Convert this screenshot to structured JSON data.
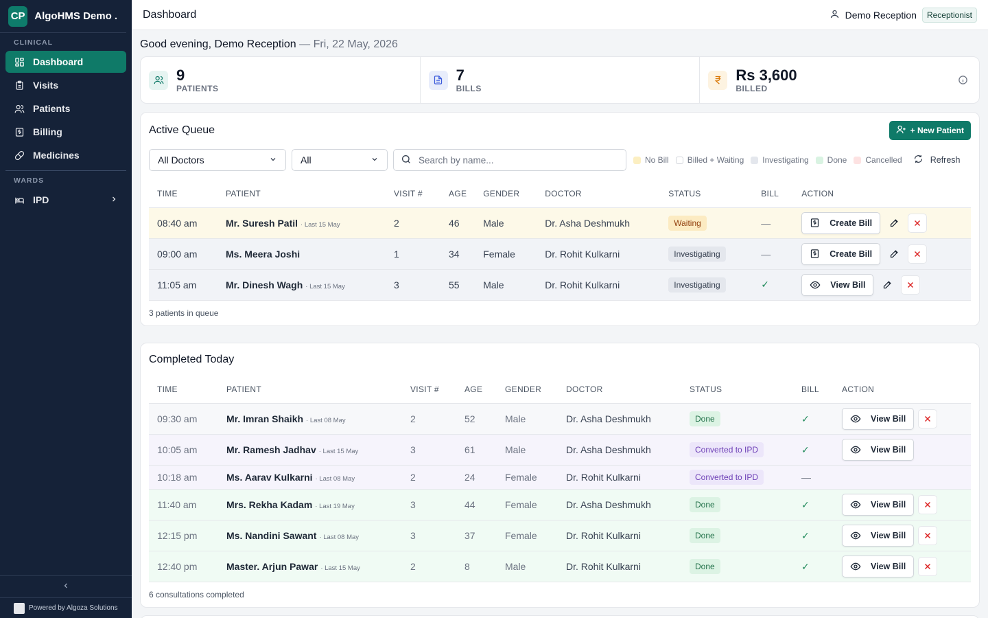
{
  "brand": {
    "logo": "CP",
    "name": "AlgoHMS Demo ..."
  },
  "sidebar": {
    "clinical_label": "CLINICAL",
    "wards_label": "WARDS",
    "items": [
      {
        "label": "Dashboard",
        "icon": "dashboard-icon"
      },
      {
        "label": "Visits",
        "icon": "clipboard-icon"
      },
      {
        "label": "Patients",
        "icon": "users-icon"
      },
      {
        "label": "Billing",
        "icon": "billing-icon"
      },
      {
        "label": "Medicines",
        "icon": "pill-icon"
      }
    ],
    "ipd": {
      "label": "IPD",
      "icon": "bed-icon"
    },
    "powered_by": "Powered by Algoza Solutions"
  },
  "topbar": {
    "title": "Dashboard",
    "user": "Demo Reception",
    "role": "Receptionist"
  },
  "greeting": {
    "text": "Good evening, Demo Reception",
    "date": "— Fri, 22 May, 2026"
  },
  "stats": [
    {
      "value": "9",
      "label": "PATIENTS",
      "icon": "users-icon",
      "color": "#0f7a68"
    },
    {
      "value": "7",
      "label": "BILLS",
      "icon": "document-icon",
      "color": "#3b5bdb"
    },
    {
      "value": "Rs 3,600",
      "label": "BILLED",
      "icon": "rupee-icon",
      "color": "#d97706"
    }
  ],
  "active_queue": {
    "title": "Active Queue",
    "new_patient": "+ New Patient",
    "doctor_filter": "All Doctors",
    "status_filter": "All",
    "search_placeholder": "Search by name...",
    "legend": [
      {
        "label": "No Bill",
        "color": "#fcefc2"
      },
      {
        "label": "Billed + Waiting",
        "color": "#ffffff"
      },
      {
        "label": "Investigating",
        "color": "#e4e7ed"
      },
      {
        "label": "Done",
        "color": "#d9f3e2"
      },
      {
        "label": "Cancelled",
        "color": "#fde2e2"
      }
    ],
    "refresh": "Refresh",
    "columns": [
      "TIME",
      "PATIENT",
      "VISIT #",
      "AGE",
      "GENDER",
      "DOCTOR",
      "STATUS",
      "BILL",
      "ACTION"
    ],
    "rows": [
      {
        "time": "08:40 am",
        "patient": "Mr. Suresh Patil",
        "last": "· Last 15 May",
        "visit": "2",
        "age": "46",
        "gender": "Male",
        "doctor": "Dr. Asha Deshmukh",
        "status": "Waiting",
        "bill": "—",
        "action": "Create Bill"
      },
      {
        "time": "09:00 am",
        "patient": "Ms. Meera Joshi",
        "last": "",
        "visit": "1",
        "age": "34",
        "gender": "Female",
        "doctor": "Dr. Rohit Kulkarni",
        "status": "Investigating",
        "bill": "—",
        "action": "Create Bill"
      },
      {
        "time": "11:05 am",
        "patient": "Mr. Dinesh Wagh",
        "last": "· Last 15 May",
        "visit": "3",
        "age": "55",
        "gender": "Male",
        "doctor": "Dr. Rohit Kulkarni",
        "status": "Investigating",
        "bill": "✓",
        "action": "View Bill"
      }
    ],
    "footer": "3 patients in queue"
  },
  "completed": {
    "title": "Completed Today",
    "columns": [
      "TIME",
      "PATIENT",
      "VISIT #",
      "AGE",
      "GENDER",
      "DOCTOR",
      "STATUS",
      "BILL",
      "ACTION"
    ],
    "rows": [
      {
        "time": "09:30 am",
        "patient": "Mr. Imran Shaikh",
        "last": "· Last 08 May",
        "visit": "2",
        "age": "52",
        "gender": "Male",
        "doctor": "Dr. Asha Deshmukh",
        "status": "Done",
        "bill": "✓",
        "action": "View Bill"
      },
      {
        "time": "10:05 am",
        "patient": "Mr. Ramesh Jadhav",
        "last": "· Last 15 May",
        "visit": "3",
        "age": "61",
        "gender": "Male",
        "doctor": "Dr. Asha Deshmukh",
        "status": "Converted to IPD",
        "bill": "✓",
        "action": "View Bill"
      },
      {
        "time": "10:18 am",
        "patient": "Ms. Aarav Kulkarni",
        "last": "· Last 08 May",
        "visit": "2",
        "age": "24",
        "gender": "Female",
        "doctor": "Dr. Rohit Kulkarni",
        "status": "Converted to IPD",
        "bill": "—",
        "action": ""
      },
      {
        "time": "11:40 am",
        "patient": "Mrs. Rekha Kadam",
        "last": "· Last 19 May",
        "visit": "3",
        "age": "44",
        "gender": "Female",
        "doctor": "Dr. Asha Deshmukh",
        "status": "Done",
        "bill": "✓",
        "action": "View Bill"
      },
      {
        "time": "12:15 pm",
        "patient": "Ms. Nandini Sawant",
        "last": "· Last 08 May",
        "visit": "3",
        "age": "37",
        "gender": "Female",
        "doctor": "Dr. Rohit Kulkarni",
        "status": "Done",
        "bill": "✓",
        "action": "View Bill"
      },
      {
        "time": "12:40 pm",
        "patient": "Master. Arjun Pawar",
        "last": "· Last 15 May",
        "visit": "2",
        "age": "8",
        "gender": "Male",
        "doctor": "Dr. Rohit Kulkarni",
        "status": "Done",
        "bill": "✓",
        "action": "View Bill"
      }
    ],
    "footer": "6 consultations completed"
  }
}
